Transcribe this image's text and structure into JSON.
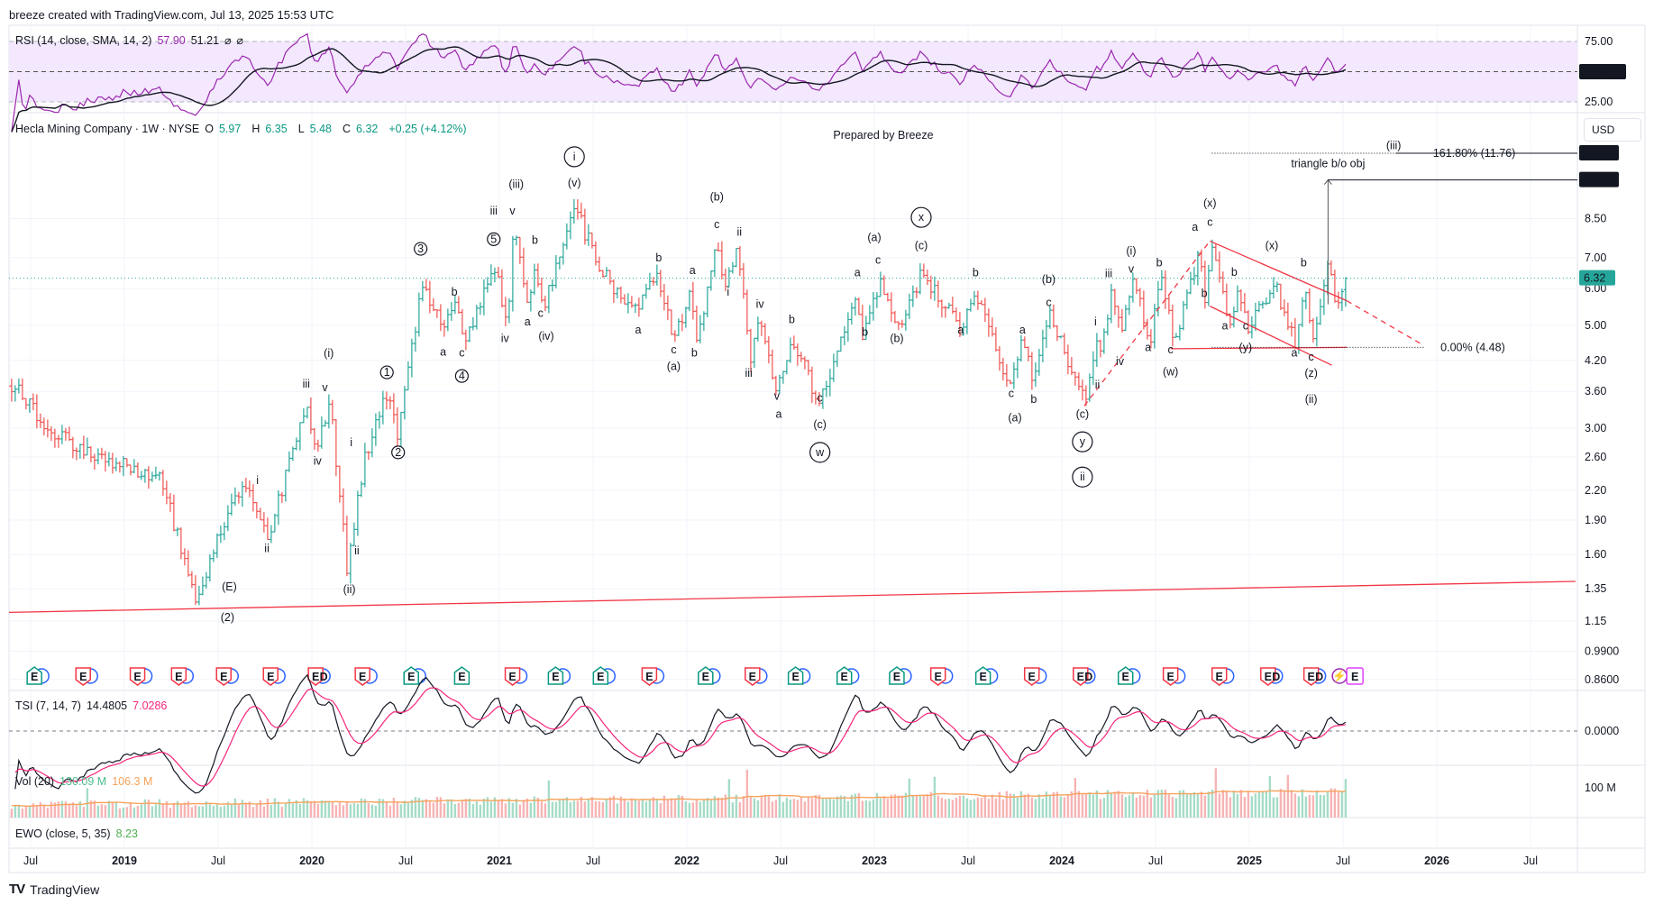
{
  "header": {
    "credit": "breeze created with TradingView.com, Jul 13, 2025 15:53 UTC"
  },
  "rsi": {
    "label": "RSI (14, close, SMA, 14, 2)",
    "value": "57.90",
    "sma": "51.21",
    "extra1": "⌀",
    "extra2": "⌀",
    "levels": [
      "75.00",
      "50.00",
      "25.00"
    ],
    "color": "#9c27b0",
    "period": 14,
    "sma_period": 14
  },
  "main": {
    "symbol": "Hecla Mining Company · 1W · NYSE",
    "o_label": "O",
    "o": "5.97",
    "h_label": "H",
    "h": "6.35",
    "l_label": "L",
    "l": "5.48",
    "c_label": "C",
    "c": "6.32",
    "change": "+0.25 (+4.12%)",
    "currency": "USD",
    "prepared": "Prepared by Breeze",
    "price_badge": "6.32",
    "badge_1176": "11.76",
    "badge_1030": "10.30",
    "fib_label": "161.80% (11.76)",
    "fib_zero": "0.00% (4.48)",
    "tri_label": "triangle b/o obj",
    "up_color": "#26a69a",
    "down_color": "#ef5350"
  },
  "tsi": {
    "label": "TSI (7, 14, 7)",
    "value": "14.4805",
    "signal": "7.0286",
    "zero": "0.0000"
  },
  "vol": {
    "label": "Vol (20)",
    "value": "130.09 M",
    "ma": "106.3 M",
    "tick": "100 M"
  },
  "ewo": {
    "label": "EWO (close, 5, 35)",
    "value": "8.23"
  },
  "xaxis": [
    {
      "t": 2018.5,
      "label": "Jul",
      "bold": false
    },
    {
      "t": 2019,
      "label": "2019",
      "bold": true
    },
    {
      "t": 2019.5,
      "label": "Jul",
      "bold": false
    },
    {
      "t": 2020,
      "label": "2020",
      "bold": true
    },
    {
      "t": 2020.5,
      "label": "Jul",
      "bold": false
    },
    {
      "t": 2021,
      "label": "2021",
      "bold": true
    },
    {
      "t": 2021.5,
      "label": "Jul",
      "bold": false
    },
    {
      "t": 2022,
      "label": "2022",
      "bold": true
    },
    {
      "t": 2022.5,
      "label": "Jul",
      "bold": false
    },
    {
      "t": 2023,
      "label": "2023",
      "bold": true
    },
    {
      "t": 2023.5,
      "label": "Jul",
      "bold": false
    },
    {
      "t": 2024,
      "label": "2024",
      "bold": true
    },
    {
      "t": 2024.5,
      "label": "Jul",
      "bold": false
    },
    {
      "t": 2025,
      "label": "2025",
      "bold": true
    },
    {
      "t": 2025.5,
      "label": "Jul",
      "bold": false
    },
    {
      "t": 2026,
      "label": "2026",
      "bold": true
    },
    {
      "t": 2026.5,
      "label": "Jul",
      "bold": false
    }
  ],
  "footer": {
    "brand": "TradingView"
  },
  "chart_data": {
    "type": "ohlc",
    "scale": "log",
    "yticks": [
      "8.50",
      "7.00",
      "6.00",
      "5.00",
      "4.20",
      "3.60",
      "3.00",
      "2.60",
      "2.20",
      "1.90",
      "1.60",
      "1.35",
      "1.15",
      "0.9900",
      "0.8600"
    ],
    "last_bar": {
      "o": 5.97,
      "h": 6.35,
      "l": 5.48,
      "c": 6.32
    },
    "anchors": [
      [
        2018.36,
        3.9
      ],
      [
        2018.59,
        3.0
      ],
      [
        2018.84,
        2.6
      ],
      [
        2019.0,
        2.5
      ],
      [
        2019.2,
        2.3
      ],
      [
        2019.39,
        1.25
      ],
      [
        2019.52,
        1.85
      ],
      [
        2019.63,
        2.3
      ],
      [
        2019.77,
        1.75
      ],
      [
        2019.97,
        3.4
      ],
      [
        2020.02,
        2.7
      ],
      [
        2020.1,
        3.4
      ],
      [
        2020.19,
        1.45
      ],
      [
        2020.28,
        2.6
      ],
      [
        2020.4,
        3.6
      ],
      [
        2020.46,
        2.85
      ],
      [
        2020.59,
        6.2
      ],
      [
        2020.7,
        4.9
      ],
      [
        2020.77,
        5.7
      ],
      [
        2020.81,
        4.5
      ],
      [
        2020.98,
        6.7
      ],
      [
        2021.04,
        5.0
      ],
      [
        2021.08,
        8.3
      ],
      [
        2021.15,
        5.5
      ],
      [
        2021.19,
        6.8
      ],
      [
        2021.23,
        5.3
      ],
      [
        2021.4,
        9.0
      ],
      [
        2021.54,
        6.6
      ],
      [
        2021.73,
        5.3
      ],
      [
        2021.84,
        6.4
      ],
      [
        2021.93,
        4.7
      ],
      [
        2022.02,
        5.9
      ],
      [
        2022.06,
        4.6
      ],
      [
        2022.16,
        7.5
      ],
      [
        2022.21,
        6.0
      ],
      [
        2022.27,
        7.3
      ],
      [
        2022.34,
        4.3
      ],
      [
        2022.39,
        5.3
      ],
      [
        2022.48,
        3.6
      ],
      [
        2022.56,
        4.8
      ],
      [
        2022.7,
        3.4
      ],
      [
        2022.9,
        5.6
      ],
      [
        2022.94,
        4.7
      ],
      [
        2023.03,
        6.2
      ],
      [
        2023.12,
        4.8
      ],
      [
        2023.25,
        6.5
      ],
      [
        2023.46,
        4.9
      ],
      [
        2023.53,
        5.9
      ],
      [
        2023.73,
        3.7
      ],
      [
        2023.79,
        4.8
      ],
      [
        2023.84,
        3.8
      ],
      [
        2023.93,
        5.3
      ],
      [
        2024.12,
        3.4
      ],
      [
        2024.19,
        4.8
      ],
      [
        2024.2,
        4.1
      ],
      [
        2024.26,
        5.9
      ],
      [
        2024.32,
        4.8
      ],
      [
        2024.38,
        6.5
      ],
      [
        2024.47,
        4.6
      ],
      [
        2024.53,
        6.4
      ],
      [
        2024.6,
        4.5
      ],
      [
        2024.73,
        7.2
      ],
      [
        2024.77,
        5.5
      ],
      [
        2024.8,
        7.6
      ],
      [
        2024.9,
        5.0
      ],
      [
        2024.94,
        5.8
      ],
      [
        2024.99,
        4.9
      ],
      [
        2025.13,
        6.2
      ],
      [
        2025.25,
        4.5
      ],
      [
        2025.3,
        6.1
      ],
      [
        2025.34,
        4.6
      ],
      [
        2025.42,
        6.9
      ],
      [
        2025.46,
        5.5
      ],
      [
        2025.5,
        5.97
      ]
    ],
    "wave_labels": [
      {
        "t": 2021.4,
        "p": 11.3,
        "text": "i",
        "circled": true
      },
      {
        "t": 2021.4,
        "p": 9.96,
        "text": "(v)"
      },
      {
        "t": 2021.09,
        "p": 9.9,
        "text": "(iii)"
      },
      {
        "t": 2020.97,
        "p": 8.67,
        "text": "iii"
      },
      {
        "t": 2021.07,
        "p": 8.67,
        "text": "v"
      },
      {
        "t": 2020.97,
        "p": 7.5,
        "text": "5",
        "circled": true
      },
      {
        "t": 2021.19,
        "p": 7.5,
        "text": "b"
      },
      {
        "t": 2021.03,
        "p": 4.6,
        "text": "iv"
      },
      {
        "t": 2021.15,
        "p": 5.0,
        "text": "a"
      },
      {
        "t": 2021.22,
        "p": 5.22,
        "text": "c"
      },
      {
        "t": 2021.25,
        "p": 4.65,
        "text": "(iv)"
      },
      {
        "t": 2020.58,
        "p": 7.15,
        "text": "3",
        "circled": true
      },
      {
        "t": 2020.76,
        "p": 5.8,
        "text": "b"
      },
      {
        "t": 2020.7,
        "p": 4.3,
        "text": "a"
      },
      {
        "t": 2020.8,
        "p": 4.28,
        "text": "c"
      },
      {
        "t": 2020.8,
        "p": 3.8,
        "text": "4",
        "circled": true
      },
      {
        "t": 2020.4,
        "p": 3.87,
        "text": "1",
        "circled": true
      },
      {
        "t": 2020.46,
        "p": 2.6,
        "text": "2",
        "circled": true
      },
      {
        "t": 2020.09,
        "p": 4.27,
        "text": "(i)"
      },
      {
        "t": 2019.97,
        "p": 3.67,
        "text": "iii"
      },
      {
        "t": 2020.07,
        "p": 3.6,
        "text": "v"
      },
      {
        "t": 2020.03,
        "p": 2.5,
        "text": "iv"
      },
      {
        "t": 2020.21,
        "p": 2.74,
        "text": "i"
      },
      {
        "t": 2020.24,
        "p": 1.6,
        "text": "ii"
      },
      {
        "t": 2020.2,
        "p": 1.32,
        "text": "(ii)"
      },
      {
        "t": 2019.71,
        "p": 2.27,
        "text": "i"
      },
      {
        "t": 2019.76,
        "p": 1.62,
        "text": "ii"
      },
      {
        "t": 2019.56,
        "p": 1.34,
        "text": "(E)"
      },
      {
        "t": 2019.55,
        "p": 1.15,
        "text": "(2)"
      },
      {
        "t": 2022.16,
        "p": 9.3,
        "text": "(b)"
      },
      {
        "t": 2022.16,
        "p": 8.1,
        "text": "c"
      },
      {
        "t": 2022.28,
        "p": 7.8,
        "text": "ii"
      },
      {
        "t": 2022.03,
        "p": 6.45,
        "text": "a"
      },
      {
        "t": 2021.85,
        "p": 6.87,
        "text": "b"
      },
      {
        "t": 2022.22,
        "p": 5.8,
        "text": "i"
      },
      {
        "t": 2021.74,
        "p": 4.8,
        "text": "a"
      },
      {
        "t": 2021.93,
        "p": 4.35,
        "text": "c"
      },
      {
        "t": 2022.04,
        "p": 4.28,
        "text": "b"
      },
      {
        "t": 2021.93,
        "p": 4.0,
        "text": "(a)"
      },
      {
        "t": 2022.39,
        "p": 5.45,
        "text": "iv"
      },
      {
        "t": 2022.56,
        "p": 5.05,
        "text": "b"
      },
      {
        "t": 2022.33,
        "p": 3.87,
        "text": "iii"
      },
      {
        "t": 2022.48,
        "p": 3.45,
        "text": "v"
      },
      {
        "t": 2022.49,
        "p": 3.16,
        "text": "a"
      },
      {
        "t": 2022.71,
        "p": 3.42,
        "text": "c"
      },
      {
        "t": 2022.71,
        "p": 3.0,
        "text": "(c)"
      },
      {
        "t": 2022.71,
        "p": 2.6,
        "text": "w",
        "circled": true
      },
      {
        "t": 2023.0,
        "p": 7.6,
        "text": "(a)"
      },
      {
        "t": 2023.02,
        "p": 6.8,
        "text": "c"
      },
      {
        "t": 2022.91,
        "p": 6.38,
        "text": "a"
      },
      {
        "t": 2022.95,
        "p": 4.75,
        "text": "b"
      },
      {
        "t": 2023.12,
        "p": 4.6,
        "text": "(b)"
      },
      {
        "t": 2023.25,
        "p": 8.36,
        "text": "x",
        "circled": true
      },
      {
        "t": 2023.25,
        "p": 7.3,
        "text": "(c)"
      },
      {
        "t": 2023.54,
        "p": 6.38,
        "text": "b"
      },
      {
        "t": 2023.46,
        "p": 4.8,
        "text": "a"
      },
      {
        "t": 2023.93,
        "p": 6.17,
        "text": "(b)"
      },
      {
        "t": 2023.93,
        "p": 5.5,
        "text": "c"
      },
      {
        "t": 2023.79,
        "p": 4.8,
        "text": "a"
      },
      {
        "t": 2023.73,
        "p": 3.5,
        "text": "c"
      },
      {
        "t": 2023.85,
        "p": 3.4,
        "text": "b"
      },
      {
        "t": 2023.75,
        "p": 3.1,
        "text": "(a)"
      },
      {
        "t": 2024.11,
        "p": 3.16,
        "text": "(c)"
      },
      {
        "t": 2024.11,
        "p": 2.74,
        "text": "y",
        "circled": true
      },
      {
        "t": 2024.11,
        "p": 2.3,
        "text": "ii",
        "circled": true
      },
      {
        "t": 2024.25,
        "p": 6.35,
        "text": "iii"
      },
      {
        "t": 2024.37,
        "p": 7.1,
        "text": "(i)"
      },
      {
        "t": 2024.37,
        "p": 6.5,
        "text": "v"
      },
      {
        "t": 2024.52,
        "p": 6.7,
        "text": "b"
      },
      {
        "t": 2024.76,
        "p": 5.75,
        "text": "b"
      },
      {
        "t": 2024.18,
        "p": 5.0,
        "text": "i"
      },
      {
        "t": 2024.31,
        "p": 4.1,
        "text": "iv"
      },
      {
        "t": 2024.19,
        "p": 3.65,
        "text": "ii"
      },
      {
        "t": 2024.46,
        "p": 4.4,
        "text": "a"
      },
      {
        "t": 2024.58,
        "p": 4.35,
        "text": "c"
      },
      {
        "t": 2024.58,
        "p": 3.9,
        "text": "(w)"
      },
      {
        "t": 2024.79,
        "p": 9.0,
        "text": "(x)"
      },
      {
        "t": 2024.71,
        "p": 8.0,
        "text": "a"
      },
      {
        "t": 2024.79,
        "p": 8.2,
        "text": "c"
      },
      {
        "t": 2025.12,
        "p": 7.3,
        "text": "(x)"
      },
      {
        "t": 2024.92,
        "p": 6.4,
        "text": "b"
      },
      {
        "t": 2025.29,
        "p": 6.7,
        "text": "b"
      },
      {
        "t": 2024.87,
        "p": 4.9,
        "text": "a"
      },
      {
        "t": 2024.98,
        "p": 4.9,
        "text": "c"
      },
      {
        "t": 2024.98,
        "p": 4.4,
        "text": "(y)"
      },
      {
        "t": 2025.24,
        "p": 4.28,
        "text": "a"
      },
      {
        "t": 2025.33,
        "p": 4.2,
        "text": "c"
      },
      {
        "t": 2025.33,
        "p": 3.87,
        "text": "(z)"
      },
      {
        "t": 2025.33,
        "p": 3.4,
        "text": "(ii)"
      },
      {
        "t": 2025.77,
        "p": 12.0,
        "text": "(iii)"
      }
    ],
    "trendlines": [
      {
        "name": "base-support",
        "from": [
          2018.38,
          1.2
        ],
        "to": [
          2026.74,
          1.4
        ],
        "color": "#f23645",
        "dash": false
      },
      {
        "name": "triangle-upper",
        "from": [
          2024.79,
          7.6
        ],
        "to": [
          2025.52,
          5.65
        ],
        "color": "#f23645",
        "dash": false
      },
      {
        "name": "triangle-upper-ext",
        "from": [
          2025.52,
          5.65
        ],
        "to": [
          2025.92,
          4.55
        ],
        "color": "#f23645",
        "dash": true
      },
      {
        "name": "triangle-lower",
        "from": [
          2024.79,
          5.5
        ],
        "to": [
          2025.44,
          4.1
        ],
        "color": "#f23645",
        "dash": false
      },
      {
        "name": "w-level",
        "from": [
          2024.58,
          4.45
        ],
        "to": [
          2025.52,
          4.48
        ],
        "color": "#f23645",
        "dash": false
      },
      {
        "name": "impulse-channel",
        "from": [
          2024.12,
          3.35
        ],
        "to": [
          2024.79,
          7.6
        ],
        "color": "#f23645",
        "dash": true
      }
    ],
    "fib": {
      "level_1618": 11.76,
      "level_0": 4.48,
      "target": 10.3,
      "triangle_base": 5.55,
      "triangle_t": 2025.42
    },
    "events": [
      {
        "t": 2018.52,
        "kind": "E",
        "color": "green",
        "div": true
      },
      {
        "t": 2018.78,
        "kind": "E",
        "color": "red",
        "div": true
      },
      {
        "t": 2019.07,
        "kind": "E",
        "color": "red",
        "div": true
      },
      {
        "t": 2019.29,
        "kind": "E",
        "color": "red",
        "div": true
      },
      {
        "t": 2019.53,
        "kind": "E",
        "color": "red",
        "div": true
      },
      {
        "t": 2019.78,
        "kind": "E",
        "color": "red",
        "div": true
      },
      {
        "t": 2020.02,
        "kind": "ED",
        "color": "red",
        "div": true
      },
      {
        "t": 2020.27,
        "kind": "E",
        "color": "red",
        "div": true
      },
      {
        "t": 2020.53,
        "kind": "E",
        "color": "green",
        "div": true
      },
      {
        "t": 2020.8,
        "kind": "E",
        "color": "green",
        "div": false
      },
      {
        "t": 2021.07,
        "kind": "E",
        "color": "red",
        "div": true
      },
      {
        "t": 2021.3,
        "kind": "E",
        "color": "green",
        "div": true
      },
      {
        "t": 2021.54,
        "kind": "E",
        "color": "green",
        "div": true
      },
      {
        "t": 2021.8,
        "kind": "E",
        "color": "red",
        "div": true
      },
      {
        "t": 2022.1,
        "kind": "E",
        "color": "green",
        "div": true
      },
      {
        "t": 2022.35,
        "kind": "E",
        "color": "red",
        "div": true
      },
      {
        "t": 2022.58,
        "kind": "E",
        "color": "green",
        "div": true
      },
      {
        "t": 2022.84,
        "kind": "E",
        "color": "green",
        "div": true
      },
      {
        "t": 2023.12,
        "kind": "E",
        "color": "green",
        "div": true
      },
      {
        "t": 2023.34,
        "kind": "E",
        "color": "red",
        "div": true
      },
      {
        "t": 2023.58,
        "kind": "E",
        "color": "green",
        "div": true
      },
      {
        "t": 2023.84,
        "kind": "E",
        "color": "red",
        "div": true
      },
      {
        "t": 2024.1,
        "kind": "ED",
        "color": "red",
        "div": true
      },
      {
        "t": 2024.34,
        "kind": "E",
        "color": "green",
        "div": true
      },
      {
        "t": 2024.58,
        "kind": "E",
        "color": "red",
        "div": true
      },
      {
        "t": 2024.84,
        "kind": "E",
        "color": "red",
        "div": true
      },
      {
        "t": 2025.1,
        "kind": "ED",
        "color": "red",
        "div": true
      },
      {
        "t": 2025.33,
        "kind": "ED",
        "color": "red",
        "div": true
      },
      {
        "t": 2025.52,
        "kind": "SE",
        "color": "magenta",
        "div": false
      }
    ]
  }
}
